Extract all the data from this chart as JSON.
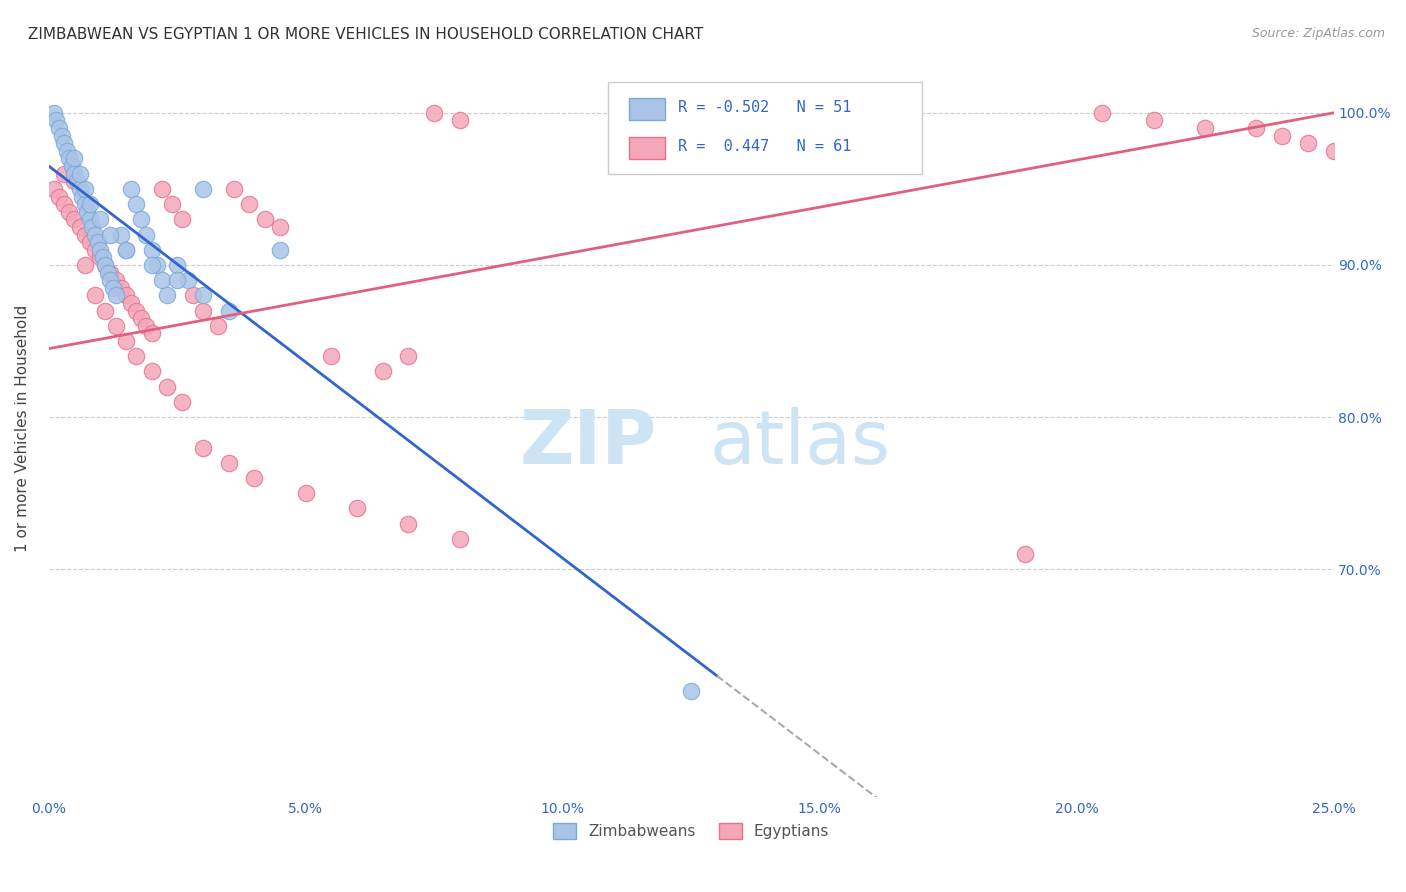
{
  "title": "ZIMBABWEAN VS EGYPTIAN 1 OR MORE VEHICLES IN HOUSEHOLD CORRELATION CHART",
  "source": "Source: ZipAtlas.com",
  "ylabel": "1 or more Vehicles in Household",
  "x_min": 0.0,
  "x_max": 25.0,
  "y_min": 55.0,
  "y_max": 103.5,
  "x_ticks": [
    0.0,
    5.0,
    10.0,
    15.0,
    20.0,
    25.0
  ],
  "x_tick_labels": [
    "0.0%",
    "5.0%",
    "10.0%",
    "15.0%",
    "20.0%",
    "25.0%"
  ],
  "y_ticks": [
    70.0,
    80.0,
    90.0,
    100.0
  ],
  "y_tick_labels": [
    "70.0%",
    "80.0%",
    "90.0%",
    "100.0%"
  ],
  "grid_color": "#cccccc",
  "background_color": "#ffffff",
  "zimbabwean_color": "#aac4e8",
  "egyptian_color": "#f4a7b9",
  "zimbabwean_edge": "#7aaad4",
  "egyptian_edge": "#e87090",
  "trend_zim_color": "#3366cc",
  "trend_egy_color": "#e06080",
  "legend_R_zim": "R = -0.502",
  "legend_N_zim": "N = 51",
  "legend_R_egy": "R =  0.447",
  "legend_N_egy": "N = 61",
  "zipatlas_color": "#d0e8f8",
  "zimbabwean_x": [
    0.1,
    0.15,
    0.2,
    0.25,
    0.3,
    0.35,
    0.4,
    0.45,
    0.5,
    0.55,
    0.6,
    0.65,
    0.7,
    0.75,
    0.8,
    0.85,
    0.9,
    0.95,
    1.0,
    1.05,
    1.1,
    1.15,
    1.2,
    1.25,
    1.3,
    1.4,
    1.5,
    1.6,
    1.7,
    1.8,
    1.9,
    2.0,
    2.1,
    2.2,
    2.3,
    2.5,
    2.7,
    3.0,
    0.5,
    0.6,
    0.7,
    0.8,
    1.0,
    1.2,
    1.5,
    2.0,
    2.5,
    3.0,
    3.5,
    4.5,
    12.5
  ],
  "zimbabwean_y": [
    100.0,
    99.5,
    99.0,
    98.5,
    98.0,
    97.5,
    97.0,
    96.5,
    96.0,
    95.5,
    95.0,
    94.5,
    94.0,
    93.5,
    93.0,
    92.5,
    92.0,
    91.5,
    91.0,
    90.5,
    90.0,
    89.5,
    89.0,
    88.5,
    88.0,
    92.0,
    91.0,
    95.0,
    94.0,
    93.0,
    92.0,
    91.0,
    90.0,
    89.0,
    88.0,
    90.0,
    89.0,
    95.0,
    97.0,
    96.0,
    95.0,
    94.0,
    93.0,
    92.0,
    91.0,
    90.0,
    89.0,
    88.0,
    87.0,
    91.0,
    62.0
  ],
  "egyptian_x": [
    0.1,
    0.2,
    0.3,
    0.4,
    0.5,
    0.6,
    0.7,
    0.8,
    0.9,
    1.0,
    1.1,
    1.2,
    1.3,
    1.4,
    1.5,
    1.6,
    1.7,
    1.8,
    1.9,
    2.0,
    2.2,
    2.4,
    2.6,
    2.8,
    3.0,
    3.3,
    3.6,
    3.9,
    4.2,
    4.5,
    5.5,
    6.5,
    7.0,
    7.5,
    8.0,
    0.3,
    0.5,
    0.7,
    0.9,
    1.1,
    1.3,
    1.5,
    1.7,
    2.0,
    2.3,
    2.6,
    3.0,
    3.5,
    4.0,
    5.0,
    6.0,
    7.0,
    8.0,
    19.0,
    20.5,
    21.5,
    22.5,
    23.5,
    24.0,
    24.5,
    25.0
  ],
  "egyptian_y": [
    95.0,
    94.5,
    94.0,
    93.5,
    93.0,
    92.5,
    92.0,
    91.5,
    91.0,
    90.5,
    90.0,
    89.5,
    89.0,
    88.5,
    88.0,
    87.5,
    87.0,
    86.5,
    86.0,
    85.5,
    95.0,
    94.0,
    93.0,
    88.0,
    87.0,
    86.0,
    95.0,
    94.0,
    93.0,
    92.5,
    84.0,
    83.0,
    84.0,
    100.0,
    99.5,
    96.0,
    95.5,
    90.0,
    88.0,
    87.0,
    86.0,
    85.0,
    84.0,
    83.0,
    82.0,
    81.0,
    78.0,
    77.0,
    76.0,
    75.0,
    74.0,
    73.0,
    72.0,
    71.0,
    100.0,
    99.5,
    99.0,
    99.0,
    98.5,
    98.0,
    97.5
  ]
}
